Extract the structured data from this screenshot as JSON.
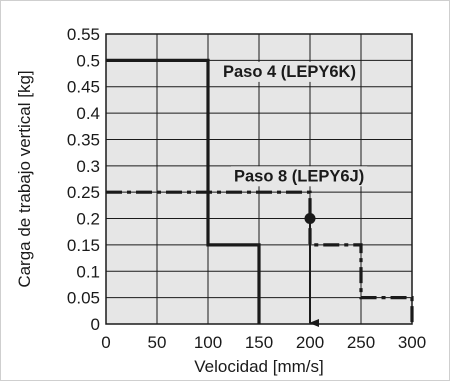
{
  "chart_data": {
    "type": "line",
    "xlabel": "Velocidad [mm/s]",
    "ylabel": "Carga de trabajo vertical [kg]",
    "xlim": [
      0,
      300
    ],
    "ylim": [
      0,
      0.55
    ],
    "x_ticks": [
      "0",
      "50",
      "100",
      "150",
      "200",
      "250",
      "300"
    ],
    "y_ticks": [
      "0",
      "0.05",
      "0.1",
      "0.15",
      "0.2",
      "0.25",
      "0.3",
      "0.35",
      "0.4",
      "0.45",
      "0.5",
      "0.55"
    ],
    "grid": true,
    "series": [
      {
        "name": "Paso 4 (LEPY6K)",
        "style": "solid",
        "x": [
          0,
          100,
          100,
          150,
          150
        ],
        "y": [
          0.5,
          0.5,
          0.15,
          0.15,
          0
        ]
      },
      {
        "name": "Paso 8 (LEPY6J)",
        "style": "dash-dot",
        "x": [
          0,
          200,
          200,
          250,
          250,
          300,
          300
        ],
        "y": [
          0.25,
          0.25,
          0.15,
          0.15,
          0.05,
          0.05,
          0
        ]
      }
    ],
    "annotations": [
      {
        "type": "marker",
        "x": 200,
        "y": 0.2
      },
      {
        "type": "arrow",
        "from": [
          200,
          0.2
        ],
        "to": [
          200,
          0
        ]
      }
    ],
    "colors": {
      "line": "#1a1a1a",
      "grid": "#1a1a1a",
      "plot_background": "#e6e6e6"
    }
  }
}
